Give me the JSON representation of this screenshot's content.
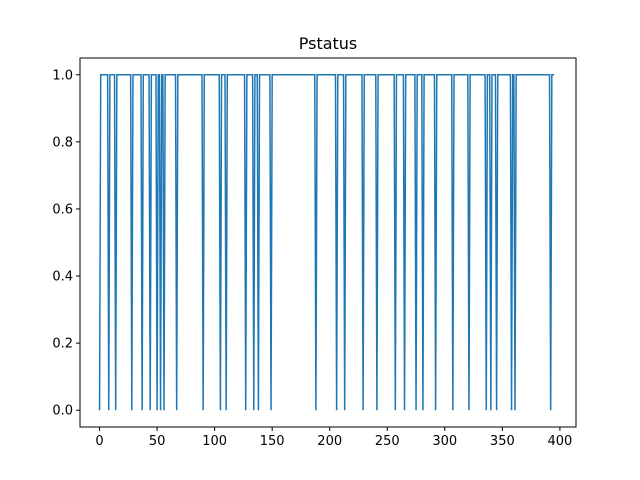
{
  "chart_data": {
    "type": "line",
    "title": "Pstatus",
    "xlabel": "",
    "ylabel": "",
    "xlim": [
      -17,
      414
    ],
    "ylim": [
      -0.05,
      1.05
    ],
    "grid": false,
    "legend": "none",
    "color": "#1f77b4",
    "x_ticks": [
      0,
      50,
      100,
      150,
      200,
      250,
      300,
      350,
      400
    ],
    "x_tick_labels": [
      "0",
      "50",
      "100",
      "150",
      "200",
      "250",
      "300",
      "350",
      "400"
    ],
    "y_ticks": [
      0.0,
      0.2,
      0.4,
      0.6,
      0.8,
      1.0
    ],
    "y_tick_labels": [
      "0.0",
      "0.2",
      "0.4",
      "0.6",
      "0.8",
      "1.0"
    ],
    "x_range": [
      0,
      395
    ],
    "baseline": 1,
    "zero_at": [
      0,
      8,
      14,
      28,
      37,
      44,
      50,
      53,
      56,
      67,
      90,
      105,
      110,
      127,
      134,
      138,
      149,
      188,
      206,
      213,
      229,
      241,
      257,
      265,
      275,
      281,
      292,
      307,
      321,
      336,
      340,
      345,
      358,
      361,
      392
    ]
  }
}
